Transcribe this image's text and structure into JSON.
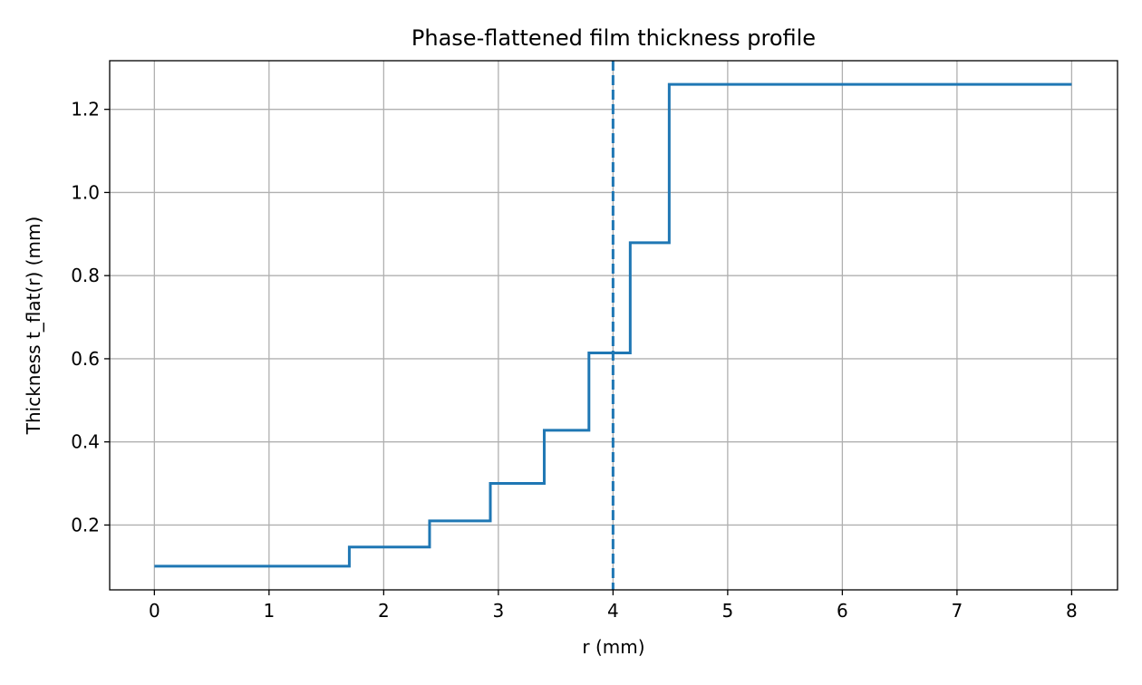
{
  "chart_data": {
    "type": "line",
    "title": "Phase-flattened film thickness profile",
    "xlabel": "r (mm)",
    "ylabel": "Thickness t_flat(r) (mm)",
    "xlim": [
      -0.39,
      8.4
    ],
    "ylim": [
      0.044,
      1.317
    ],
    "xticks": [
      0,
      1,
      2,
      3,
      4,
      5,
      6,
      7,
      8
    ],
    "yticks": [
      0.2,
      0.4,
      0.6,
      0.8,
      1.0,
      1.2
    ],
    "ytick_labels": [
      "0.2",
      "0.4",
      "0.6",
      "0.8",
      "1.0",
      "1.2"
    ],
    "grid": true,
    "color": "#1f77b4",
    "series": [
      {
        "step": "post",
        "x": [
          0,
          1.7,
          2.4,
          2.93,
          3.4,
          3.79,
          4.15,
          4.49,
          8.0
        ],
        "y": [
          0.101,
          0.147,
          0.21,
          0.3,
          0.428,
          0.614,
          0.879,
          1.26,
          1.26
        ]
      }
    ],
    "reference_lines": [
      {
        "orientation": "vertical",
        "x": 4.0,
        "style": "dashed"
      }
    ]
  }
}
